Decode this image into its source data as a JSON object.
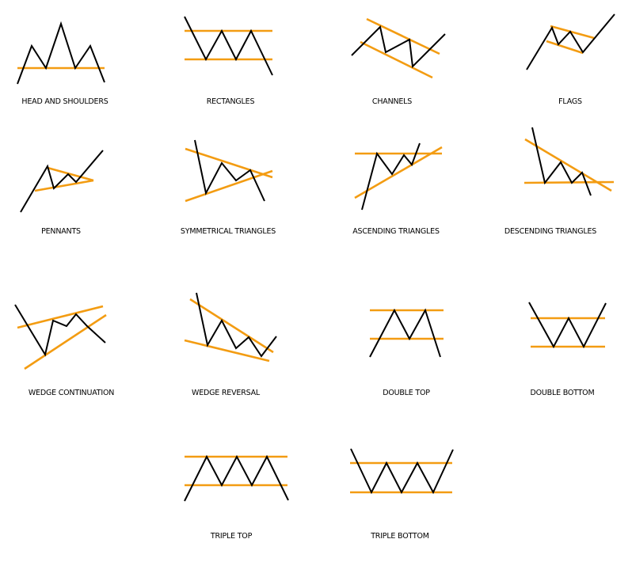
{
  "style": {
    "price_line_color": "#000000",
    "trend_line_color": "#F39C12",
    "background": "#FFFFFF"
  },
  "patterns": [
    {
      "id": "head-and-shoulders",
      "label": "HEAD AND SHOULDERS"
    },
    {
      "id": "rectangles",
      "label": "RECTANGLES"
    },
    {
      "id": "channels",
      "label": "CHANNELS"
    },
    {
      "id": "flags",
      "label": "FLAGS"
    },
    {
      "id": "pennants",
      "label": "PENNANTS"
    },
    {
      "id": "symmetrical-triangles",
      "label": "SYMMETRICAL TRIANGLES"
    },
    {
      "id": "ascending-triangles",
      "label": "ASCENDING TRIANGLES"
    },
    {
      "id": "descending-triangles",
      "label": "DESCENDING TRIANGLES"
    },
    {
      "id": "wedge-continuation",
      "label": "WEDGE CONTINUATION"
    },
    {
      "id": "wedge-reversal",
      "label": "WEDGE REVERSAL"
    },
    {
      "id": "double-top",
      "label": "DOUBLE TOP"
    },
    {
      "id": "double-bottom",
      "label": "DOUBLE BOTTOM"
    },
    {
      "id": "triple-top",
      "label": "TRIPLE TOP"
    },
    {
      "id": "triple-bottom",
      "label": "TRIPLE BOTTOM"
    }
  ]
}
